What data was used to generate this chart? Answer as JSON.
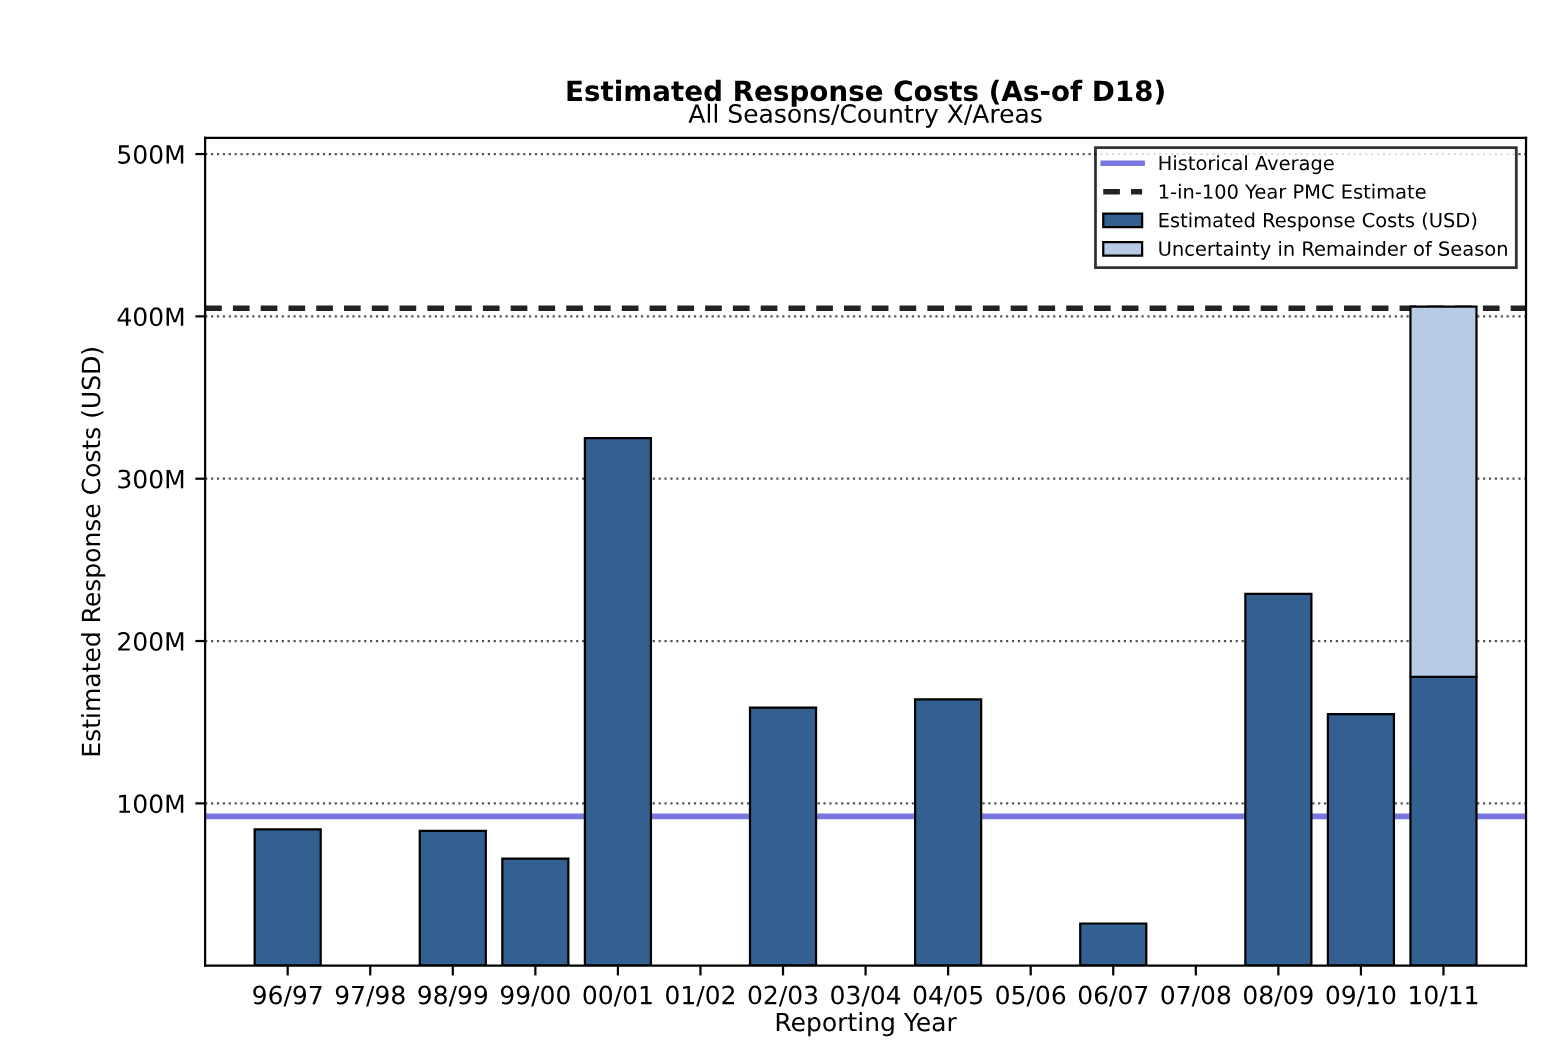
{
  "chart_data": {
    "type": "bar",
    "title": "Estimated Response Costs (As-of D18)",
    "subtitle": "All Seasons/Country X/Areas",
    "xlabel": "Reporting Year",
    "ylabel": "Estimated Response Costs (USD)",
    "categories": [
      "96/97",
      "97/98",
      "98/99",
      "99/00",
      "00/01",
      "01/02",
      "02/03",
      "03/04",
      "04/05",
      "05/06",
      "06/07",
      "07/08",
      "08/09",
      "09/10",
      "10/11"
    ],
    "stacked": true,
    "series": [
      {
        "name": "Estimated Response Costs (USD)",
        "color": "#335f91",
        "values": [
          84,
          null,
          83,
          66,
          325,
          null,
          159,
          null,
          164,
          null,
          26,
          null,
          229,
          155,
          178
        ]
      },
      {
        "name": "Uncertainty in Remainder of Season",
        "color": "#b7cce4",
        "values": [
          null,
          null,
          null,
          null,
          null,
          null,
          null,
          null,
          null,
          null,
          null,
          null,
          null,
          null,
          228
        ]
      }
    ],
    "ref_lines": [
      {
        "axis": "y",
        "value": 92,
        "label": "Historical Average",
        "color": "#7777dd",
        "line_style": "solid"
      },
      {
        "axis": "y",
        "value": 405,
        "label": "1-in-100 Year PMC Estimate",
        "color": "#222222",
        "line_style": "dashed"
      }
    ],
    "ylim": [
      0,
      510
    ],
    "yticks": [
      {
        "value": 100,
        "label": "100M"
      },
      {
        "value": 200,
        "label": "200M"
      },
      {
        "value": 300,
        "label": "300M"
      },
      {
        "value": 400,
        "label": "400M"
      },
      {
        "value": 500,
        "label": "500M"
      }
    ],
    "grid": "y",
    "legend": "top right"
  }
}
